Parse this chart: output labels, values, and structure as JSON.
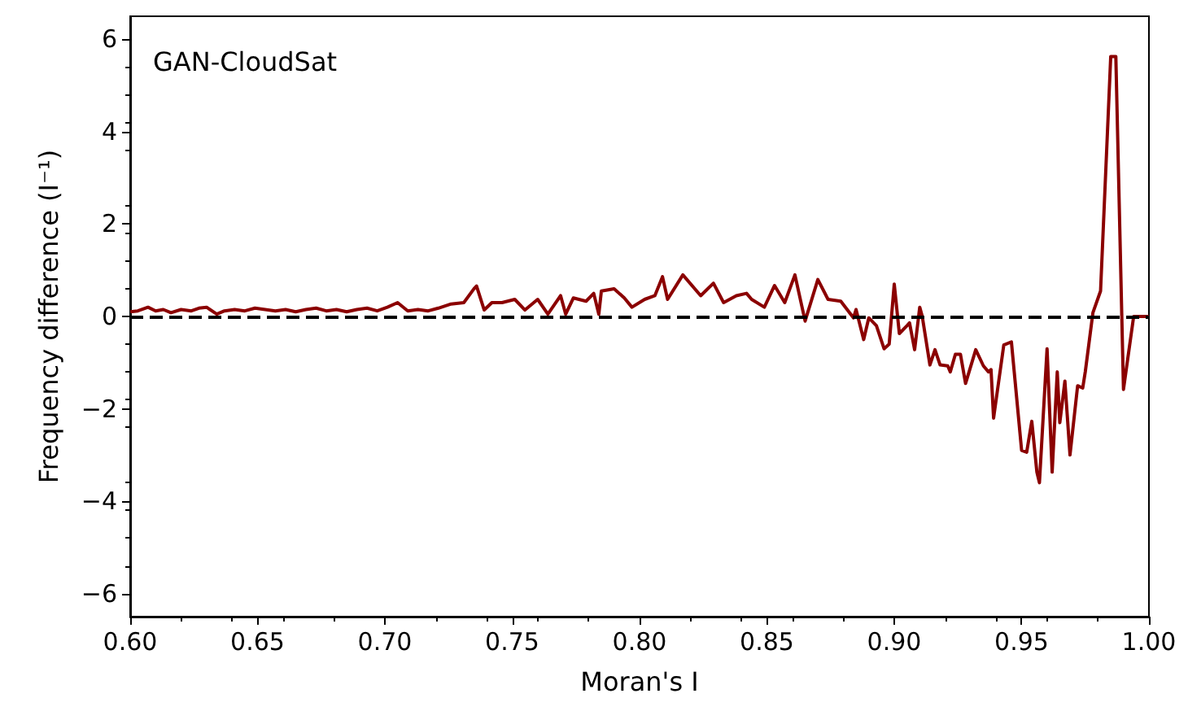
{
  "chart_data": {
    "type": "line",
    "xlabel": "Moran's I",
    "ylabel": "Frequency difference (I⁻¹)",
    "annotations": [
      "GAN-CloudSat"
    ],
    "xlim": [
      0.6,
      1.0
    ],
    "ylim": [
      -6.5,
      6.5
    ],
    "xticks": [
      {
        "value": 0.6,
        "label": "0.60"
      },
      {
        "value": 0.65,
        "label": "0.65"
      },
      {
        "value": 0.7,
        "label": "0.70"
      },
      {
        "value": 0.75,
        "label": "0.75"
      },
      {
        "value": 0.8,
        "label": "0.80"
      },
      {
        "value": 0.85,
        "label": "0.85"
      },
      {
        "value": 0.9,
        "label": "0.90"
      },
      {
        "value": 0.95,
        "label": "0.95"
      },
      {
        "value": 1.0,
        "label": "1.00"
      }
    ],
    "yticks": [
      {
        "value": -6,
        "label": "−6"
      },
      {
        "value": -4,
        "label": "−4"
      },
      {
        "value": -2,
        "label": "−2"
      },
      0,
      2,
      4,
      6
    ],
    "grid": false,
    "marker": "none",
    "line_style": "solid",
    "ref_lines": [
      {
        "axis": "y",
        "value": 0,
        "label": null,
        "color": "#000000",
        "line_style": "dashed"
      }
    ],
    "series": [
      {
        "color": "#8b0000",
        "x": [
          0.6,
          0.603,
          0.607,
          0.61,
          0.613,
          0.616,
          0.62,
          0.624,
          0.627,
          0.63,
          0.634,
          0.637,
          0.641,
          0.645,
          0.649,
          0.653,
          0.657,
          0.661,
          0.665,
          0.669,
          0.673,
          0.677,
          0.681,
          0.685,
          0.689,
          0.693,
          0.697,
          0.701,
          0.705,
          0.709,
          0.713,
          0.717,
          0.721,
          0.726,
          0.731,
          0.735,
          0.736,
          0.739,
          0.742,
          0.746,
          0.751,
          0.755,
          0.76,
          0.764,
          0.769,
          0.771,
          0.774,
          0.779,
          0.782,
          0.784,
          0.785,
          0.79,
          0.794,
          0.797,
          0.802,
          0.806,
          0.809,
          0.811,
          0.817,
          0.824,
          0.829,
          0.833,
          0.838,
          0.842,
          0.844,
          0.849,
          0.853,
          0.857,
          0.861,
          0.865,
          0.87,
          0.874,
          0.879,
          0.884,
          0.885,
          0.888,
          0.89,
          0.893,
          0.896,
          0.898,
          0.9,
          0.902,
          0.905,
          0.906,
          0.908,
          0.91,
          0.911,
          0.914,
          0.916,
          0.918,
          0.921,
          0.922,
          0.924,
          0.926,
          0.928,
          0.932,
          0.935,
          0.937,
          0.938,
          0.939,
          0.943,
          0.946,
          0.95,
          0.952,
          0.954,
          0.956,
          0.957,
          0.96,
          0.962,
          0.964,
          0.965,
          0.967,
          0.969,
          0.972,
          0.974,
          0.975,
          0.978,
          0.981,
          0.985,
          0.987,
          0.99,
          0.994,
          0.998,
          1.0
        ],
        "values": [
          0.1,
          0.12,
          0.2,
          0.12,
          0.15,
          0.08,
          0.15,
          0.12,
          0.18,
          0.2,
          0.05,
          0.12,
          0.15,
          0.12,
          0.18,
          0.15,
          0.12,
          0.15,
          0.1,
          0.15,
          0.18,
          0.12,
          0.15,
          0.1,
          0.15,
          0.18,
          0.12,
          0.2,
          0.3,
          0.12,
          0.15,
          0.12,
          0.18,
          0.27,
          0.3,
          0.6,
          0.66,
          0.14,
          0.3,
          0.3,
          0.37,
          0.14,
          0.37,
          0.05,
          0.45,
          0.05,
          0.4,
          0.33,
          0.5,
          0.05,
          0.55,
          0.6,
          0.4,
          0.2,
          0.37,
          0.45,
          0.86,
          0.37,
          0.9,
          0.45,
          0.72,
          0.3,
          0.45,
          0.5,
          0.37,
          0.2,
          0.67,
          0.3,
          0.9,
          -0.1,
          0.8,
          0.37,
          0.33,
          -0.03,
          0.15,
          -0.5,
          -0.03,
          -0.2,
          -0.7,
          -0.6,
          0.7,
          -0.37,
          -0.2,
          -0.14,
          -0.72,
          0.2,
          0,
          -1.05,
          -0.72,
          -1.05,
          -1.07,
          -1.2,
          -0.82,
          -0.82,
          -1.45,
          -0.72,
          -1.07,
          -1.2,
          -1.15,
          -2.2,
          -0.62,
          -0.55,
          -2.9,
          -2.94,
          -2.27,
          -3.37,
          -3.6,
          -0.7,
          -3.37,
          -1.2,
          -2.3,
          -1.4,
          -3.0,
          -1.5,
          -1.55,
          -1.2,
          0.08,
          0.55,
          5.63,
          5.63,
          -1.58,
          0,
          0,
          0
        ]
      }
    ]
  }
}
